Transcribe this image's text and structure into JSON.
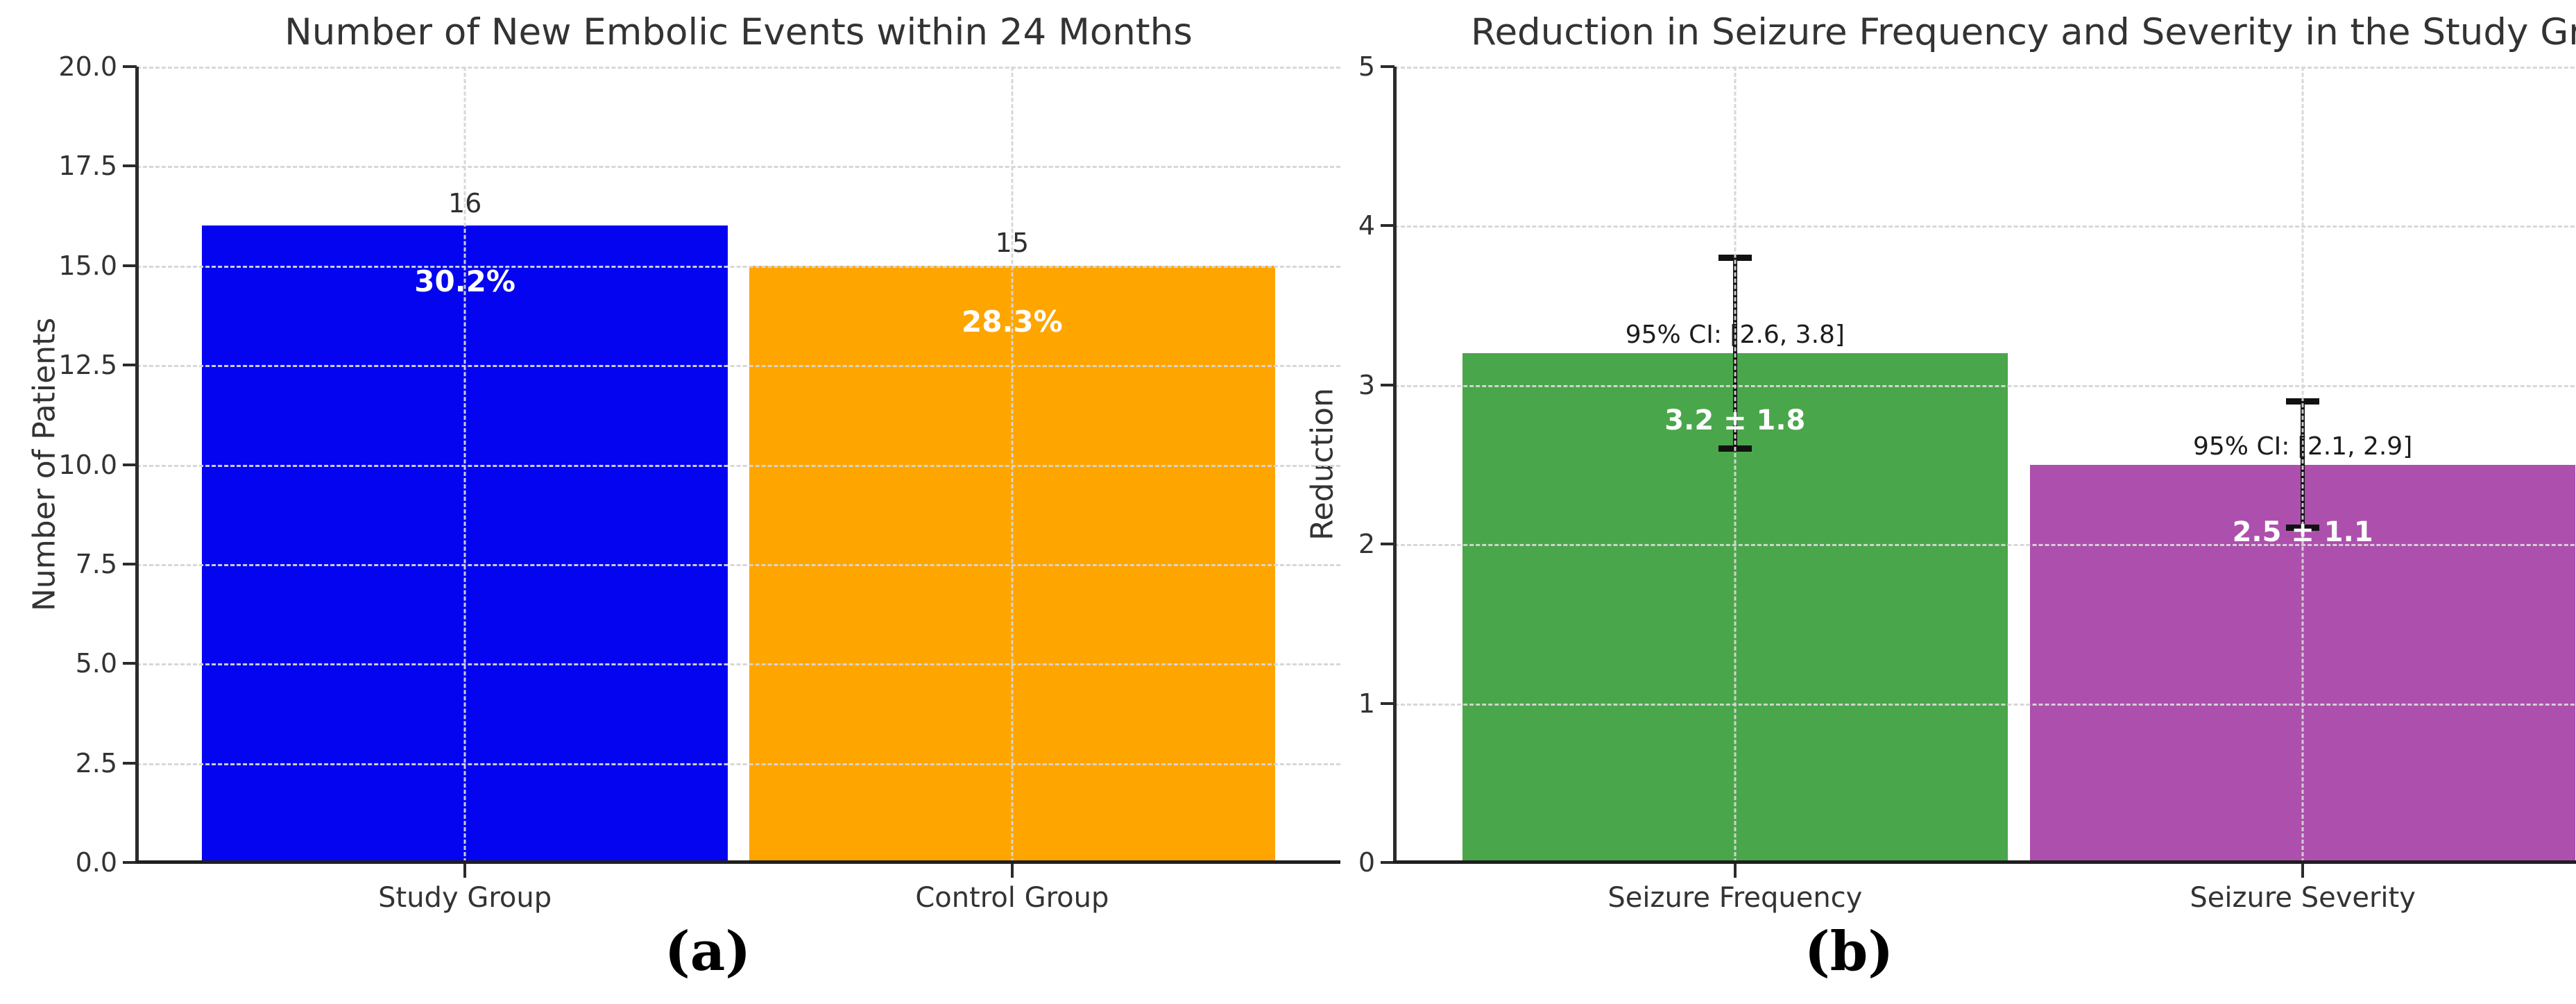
{
  "figure": {
    "captions": {
      "a": "(a)",
      "b": "(b)"
    }
  },
  "chart_data": [
    {
      "panel": "a",
      "type": "bar",
      "title": "Number of New Embolic Events within 24 Months",
      "xlabel": "",
      "ylabel": "Number of Patients",
      "ylim": [
        0,
        20
      ],
      "ytick_labels": [
        "20.0",
        "17.5",
        "15.0",
        "12.5",
        "10.0",
        "7.5",
        "5.0",
        "2.5",
        "0.0"
      ],
      "categories": [
        "Study Group",
        "Control Group"
      ],
      "values": [
        16,
        15
      ],
      "bar_value_labels": [
        "16",
        "15"
      ],
      "bar_percent_labels": [
        "30.2%",
        "28.3%"
      ],
      "bar_colors": [
        "#0404f0",
        "#ffa500"
      ],
      "grid": "dashed horizontal at each tick and vertical at bar centers, drawn over bars",
      "legend": "none"
    },
    {
      "panel": "b",
      "type": "bar",
      "title": "Reduction in Seizure Frequency and Severity in the Study Gr",
      "xlabel": "",
      "ylabel": "Reduction",
      "ylim": [
        0,
        5
      ],
      "ytick_labels": [
        "5",
        "4",
        "3",
        "2",
        "1",
        "0"
      ],
      "categories": [
        "Seizure Frequency",
        "Seizure Severity"
      ],
      "values": [
        3.2,
        2.5
      ],
      "errors": [
        1.8,
        1.1
      ],
      "ci": [
        [
          2.6,
          3.8
        ],
        [
          2.1,
          2.9
        ]
      ],
      "ci_labels": [
        "95% CI: [2.6, 3.8]",
        "95% CI: [2.1, 2.9]"
      ],
      "bar_value_labels": [
        "3.2 ± 1.8",
        "2.5 ± 1.1"
      ],
      "bar_colors": [
        "#4aa64a",
        "#ad4fad"
      ],
      "grid": "dashed horizontal at each tick and vertical at bar centers, drawn over bars",
      "legend": "none"
    }
  ]
}
